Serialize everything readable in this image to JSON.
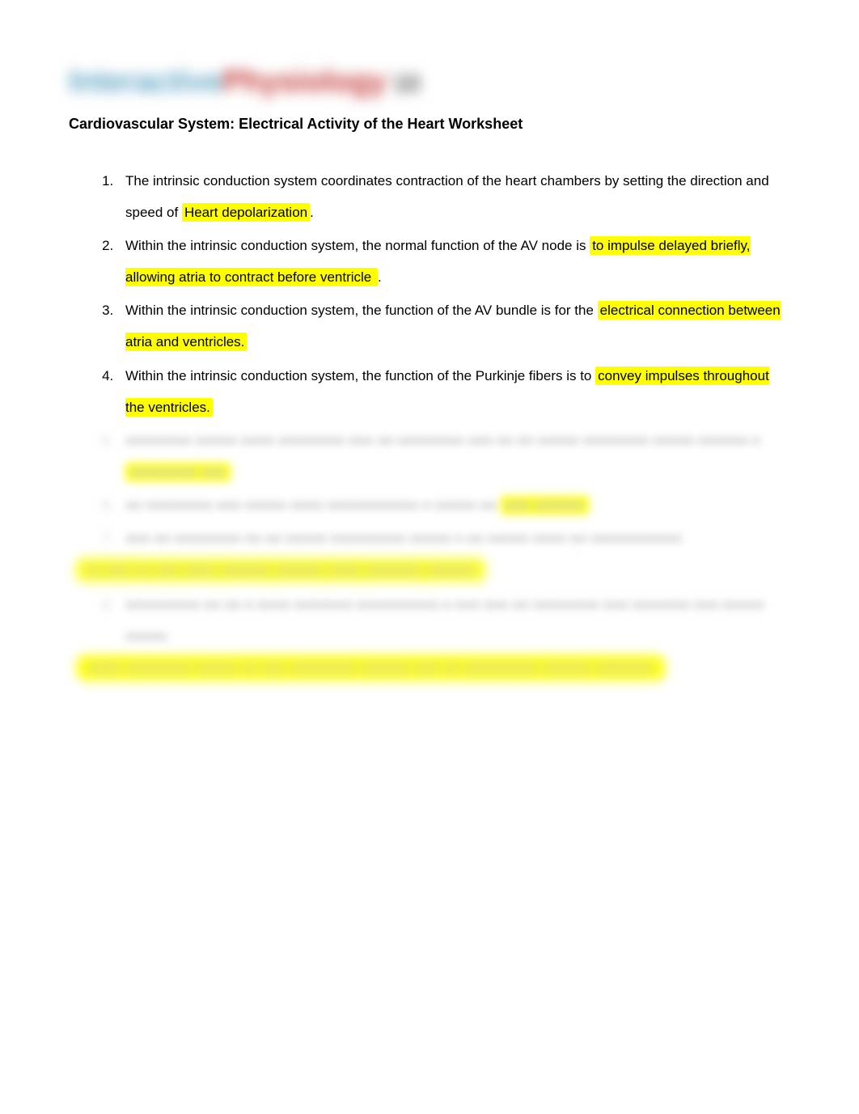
{
  "logo": {
    "word1": "Interactive",
    "word2": "Physiology",
    "suffix": "10",
    "color1": "#5ca3c4",
    "color2": "#c43b3b",
    "color3": "#555555"
  },
  "title": "Cardiovascular System: Electrical Activity of the Heart Worksheet",
  "questions": [
    {
      "number": "1",
      "text_before": "The intrinsic conduction system coordinates contraction of the heart chambers by setting the direction and speed of ",
      "highlight": "Heart depolarization",
      "text_after": "."
    },
    {
      "number": "2",
      "text_before": "Within the intrinsic conduction system, the normal function of the AV node is ",
      "highlight": "to impulse delayed briefly, allowing atria to contract before ventricle ",
      "text_after": "."
    },
    {
      "number": "3",
      "text_before": "Within the intrinsic conduction system, the function of the AV bundle is for the ",
      "highlight": "electrical connection between atria and ventricles.",
      "text_after": ""
    },
    {
      "number": "4",
      "text_before": "Within the intrinsic conduction system, the function of the Purkinje fibers is to ",
      "highlight": "convey impulses throughout the ventricles.",
      "text_after": ""
    }
  ],
  "blurred_items": [
    {
      "number": "5",
      "text_before": "■■■■■■■■ ■■■■■ ■■■■ ■■■■■■■■ ■■■ ■■ ■■■■■■■■ ■■■ ■■ ■■ ■■■■■ ■■■■■■■■ ■■■■■ ■■■■■■ ■  ",
      "highlight": "■■■■■■■■ ■■■",
      "text_after": ""
    },
    {
      "number": "6",
      "text_before": "■■ ■■■■■■■■ ■■■ ■■■■■ ■■■■ ■■■■■■■■■■■ ■ ■■■■■ ■■         ",
      "highlight": "■■■ ■■■■■■",
      "text_after": ""
    },
    {
      "number": "7",
      "text_before": "■■■ ■■ ■■■■■■■■ ■■ ■■ ■■■■■ ■■■■■■■■■ ■■■■■ ■ ■■ ■■■■■ ■■■■ ■■ ■■■■■■■■■■■",
      "highlight": "",
      "text_after": ""
    }
  ],
  "blurred_line_1": {
    "highlight": "■■ ■■■ ■■ ■■■ ■■■■ ■■■■■■ ■■■■■■ ■■■■ ■■■■■■■         ■■■■■■"
  },
  "blurred_item_8": {
    "number": "8",
    "text_before": "■■■■■■■■■ ■■ ■■ ■ ■■■■ ■■■■■■■ ■■■■■■■■■■ ■ ■■■ ■■■ ■■ ■■■■■■■■ ■■■ ■■■■■■■ ■■■ ■■■■■ ■■■■■"
  },
  "blurred_line_2": {
    "highlight": "■■■■ ■■■■■■■■ ■■■■■ ■■ ■■■ ■■■■■■■■ ■■■■■■ ■■■ ■■ ■■■■■■■■■ ■■■■■■ ■■■■■■■        "
  },
  "colors": {
    "highlight_bg": "#ffff00",
    "text_color": "#000000",
    "blurred_text": "#cfcfcf",
    "background": "#ffffff"
  },
  "typography": {
    "body_font": "Arial",
    "title_size": 18,
    "body_size": 17,
    "line_height": 2.3
  }
}
